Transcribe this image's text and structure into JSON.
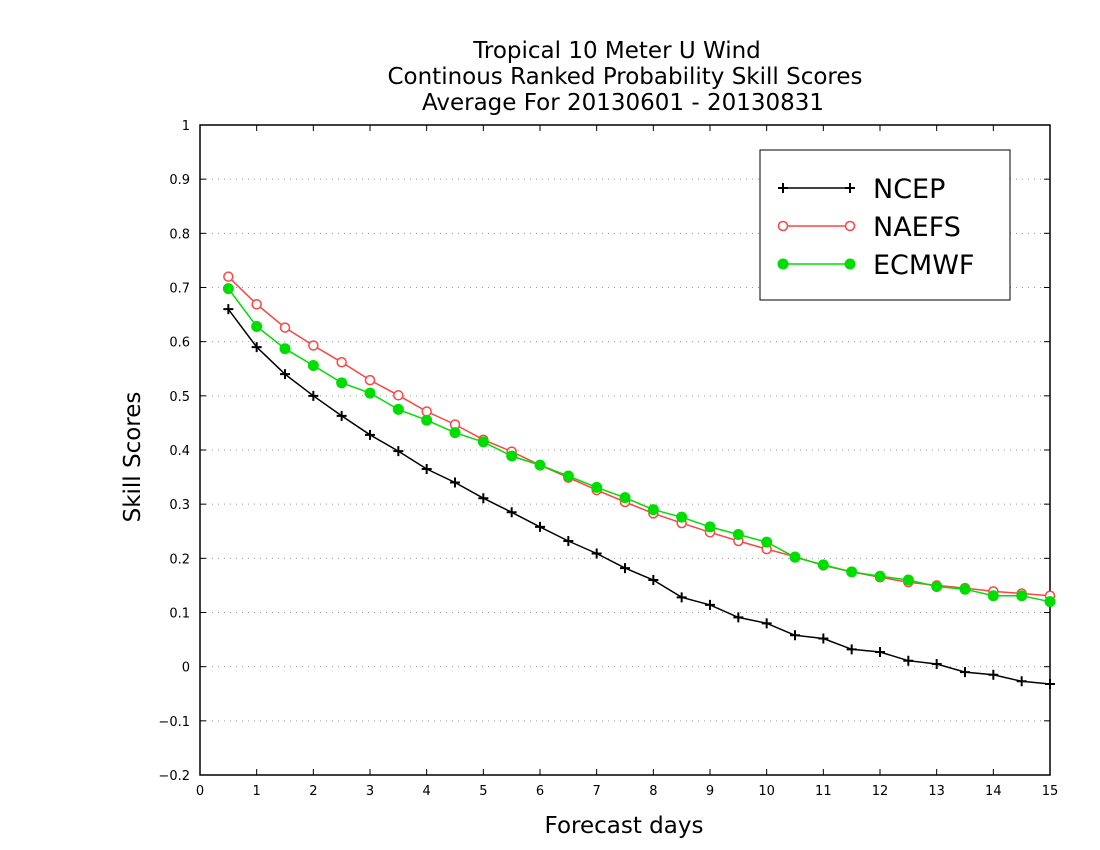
{
  "chart_data": {
    "type": "line",
    "title_lines": [
      "Tropical 10 Meter U Wind",
      "Continous Ranked Probability Skill Scores",
      "Average For 20130601 - 20130831"
    ],
    "xlabel": "Forecast days",
    "ylabel": "Skill Scores",
    "xlim": [
      0,
      15
    ],
    "ylim": [
      -0.2,
      1
    ],
    "x_ticks": [
      "0",
      "1",
      "2",
      "3",
      "4",
      "5",
      "6",
      "7",
      "8",
      "9",
      "10",
      "11",
      "12",
      "13",
      "14",
      "15"
    ],
    "y_ticks": [
      "−0.2",
      "−0.1",
      "0",
      "0.1",
      "0.2",
      "0.3",
      "0.4",
      "0.5",
      "0.6",
      "0.7",
      "0.8",
      "0.9",
      "1"
    ],
    "grid": "horizontal dotted",
    "legend_position": "top-right",
    "x": [
      0.5,
      1,
      1.5,
      2,
      2.5,
      3,
      3.5,
      4,
      4.5,
      5,
      5.5,
      6,
      6.5,
      7,
      7.5,
      8,
      8.5,
      9,
      9.5,
      10,
      10.5,
      11,
      11.5,
      12,
      12.5,
      13,
      13.5,
      14,
      14.5,
      15
    ],
    "series": [
      {
        "name": "NCEP",
        "color": "#000000",
        "marker": "plus",
        "values": [
          0.66,
          0.59,
          0.54,
          0.5,
          0.463,
          0.428,
          0.398,
          0.365,
          0.34,
          0.311,
          0.285,
          0.258,
          0.232,
          0.209,
          0.182,
          0.16,
          0.128,
          0.114,
          0.091,
          0.08,
          0.058,
          0.052,
          0.032,
          0.027,
          0.011,
          0.005,
          -0.01,
          -0.015,
          -0.027,
          -0.032
        ]
      },
      {
        "name": "NAEFS",
        "color": "#ff4444",
        "marker": "open-circle",
        "values": [
          0.72,
          0.669,
          0.626,
          0.593,
          0.562,
          0.529,
          0.501,
          0.471,
          0.447,
          0.419,
          0.397,
          0.372,
          0.349,
          0.326,
          0.304,
          0.283,
          0.265,
          0.248,
          0.232,
          0.217,
          0.203,
          0.187,
          0.175,
          0.165,
          0.156,
          0.15,
          0.145,
          0.139,
          0.135,
          0.131
        ]
      },
      {
        "name": "ECMWF",
        "color": "#00dd00",
        "marker": "filled-circle",
        "values": [
          0.698,
          0.628,
          0.587,
          0.556,
          0.524,
          0.505,
          0.475,
          0.455,
          0.432,
          0.415,
          0.389,
          0.372,
          0.352,
          0.331,
          0.312,
          0.29,
          0.276,
          0.258,
          0.244,
          0.23,
          0.202,
          0.188,
          0.175,
          0.167,
          0.16,
          0.148,
          0.143,
          0.131,
          0.131,
          0.12
        ]
      }
    ]
  }
}
